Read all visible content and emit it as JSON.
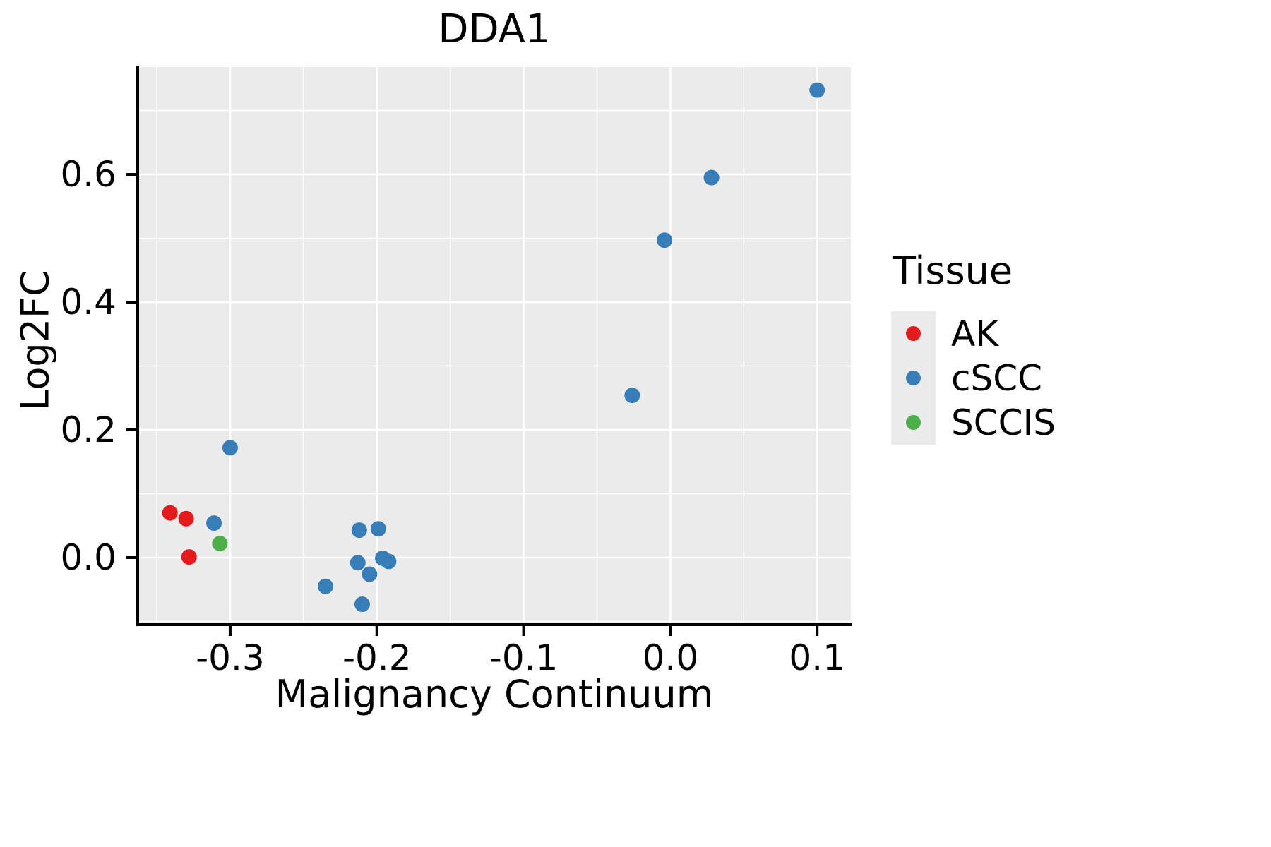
{
  "title": "DDA1",
  "axes": {
    "x_label": "Malignancy Continuum",
    "y_label": "Log2FC"
  },
  "legend": {
    "title": "Tissue",
    "items": [
      {
        "label": "AK",
        "color": "#E41A1C"
      },
      {
        "label": "cSCC",
        "color": "#377EB8"
      },
      {
        "label": "SCCIS",
        "color": "#4DAF4A"
      }
    ]
  },
  "colors": {
    "panel_bg": "#EBEBEB",
    "grid": "#FFFFFF",
    "axis": "#000000",
    "text": "#000000"
  },
  "chart_data": {
    "type": "scatter",
    "title": "DDA1",
    "xlabel": "Malignancy Continuum",
    "ylabel": "Log2FC",
    "xlim": [
      -0.363,
      0.123
    ],
    "ylim": [
      -0.105,
      0.768
    ],
    "x_ticks": [
      -0.3,
      -0.2,
      -0.1,
      0.0,
      0.1
    ],
    "y_ticks": [
      0.0,
      0.2,
      0.4,
      0.6
    ],
    "grid": true,
    "legend_position": "right",
    "series": [
      {
        "name": "AK",
        "color": "#E41A1C",
        "points": [
          [
            -0.341,
            0.07
          ],
          [
            -0.33,
            0.061
          ],
          [
            -0.328,
            0.001
          ]
        ]
      },
      {
        "name": "cSCC",
        "color": "#377EB8",
        "points": [
          [
            0.1,
            0.732
          ],
          [
            0.028,
            0.595
          ],
          [
            -0.004,
            0.497
          ],
          [
            -0.026,
            0.254
          ],
          [
            -0.3,
            0.172
          ],
          [
            -0.311,
            0.054
          ],
          [
            -0.235,
            -0.045
          ],
          [
            -0.212,
            0.043
          ],
          [
            -0.199,
            0.045
          ],
          [
            -0.213,
            -0.008
          ],
          [
            -0.205,
            -0.026
          ],
          [
            -0.196,
            -0.001
          ],
          [
            -0.192,
            -0.006
          ],
          [
            -0.21,
            -0.073
          ]
        ]
      },
      {
        "name": "SCCIS",
        "color": "#4DAF4A",
        "points": [
          [
            -0.307,
            0.022
          ]
        ]
      }
    ]
  }
}
